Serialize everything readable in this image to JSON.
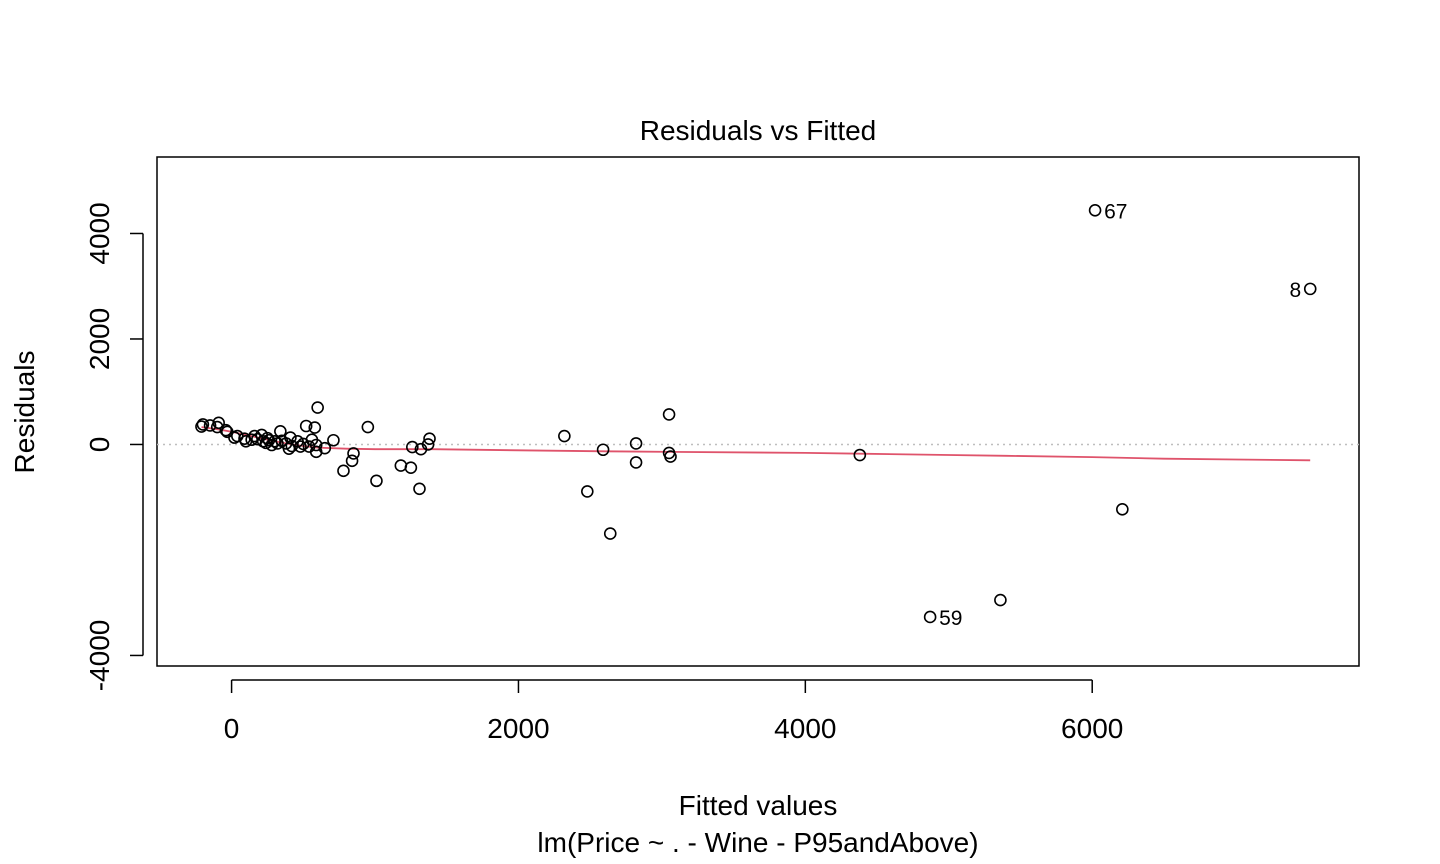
{
  "chart_data": {
    "type": "scatter",
    "title": "Residuals vs Fitted",
    "xlabel": "Fitted values",
    "sublabel": "lm(Price ~ . - Wine - P95andAbove)",
    "ylabel": "Residuals",
    "xlim": [
      -520,
      7860
    ],
    "ylim": [
      -4200,
      5450
    ],
    "x_ticks": [
      0,
      2000,
      4000,
      6000
    ],
    "y_ticks": [
      -4000,
      0,
      2000,
      4000
    ],
    "x_tick_labels": [
      "0",
      "2000",
      "4000",
      "6000"
    ],
    "y_tick_labels": [
      "-4000",
      "0",
      "2000",
      "4000"
    ],
    "grid": false,
    "zero_line": {
      "y": 0,
      "style": "dotted",
      "color": "#bebebe"
    },
    "point_color": "#000000",
    "smoother_color": "#df536b",
    "points": [
      {
        "x": -210,
        "y": 340
      },
      {
        "x": -200,
        "y": 380
      },
      {
        "x": -150,
        "y": 360
      },
      {
        "x": -90,
        "y": 410
      },
      {
        "x": -100,
        "y": 330
      },
      {
        "x": -40,
        "y": 270
      },
      {
        "x": -30,
        "y": 240
      },
      {
        "x": 20,
        "y": 130
      },
      {
        "x": 40,
        "y": 160
      },
      {
        "x": 90,
        "y": 110
      },
      {
        "x": 100,
        "y": 60
      },
      {
        "x": 140,
        "y": 90
      },
      {
        "x": 160,
        "y": 160
      },
      {
        "x": 180,
        "y": 100
      },
      {
        "x": 210,
        "y": 180
      },
      {
        "x": 220,
        "y": 60
      },
      {
        "x": 240,
        "y": 30
      },
      {
        "x": 250,
        "y": 120
      },
      {
        "x": 260,
        "y": 80
      },
      {
        "x": 280,
        "y": -10
      },
      {
        "x": 300,
        "y": 60
      },
      {
        "x": 320,
        "y": 20
      },
      {
        "x": 340,
        "y": 250
      },
      {
        "x": 350,
        "y": 70
      },
      {
        "x": 380,
        "y": 20
      },
      {
        "x": 400,
        "y": -80
      },
      {
        "x": 410,
        "y": 130
      },
      {
        "x": 420,
        "y": -30
      },
      {
        "x": 460,
        "y": 60
      },
      {
        "x": 480,
        "y": -40
      },
      {
        "x": 500,
        "y": 10
      },
      {
        "x": 520,
        "y": 350
      },
      {
        "x": 540,
        "y": -40
      },
      {
        "x": 560,
        "y": 90
      },
      {
        "x": 580,
        "y": 320
      },
      {
        "x": 590,
        "y": -10
      },
      {
        "x": 590,
        "y": -140
      },
      {
        "x": 600,
        "y": 700
      },
      {
        "x": 650,
        "y": -70
      },
      {
        "x": 710,
        "y": 80
      },
      {
        "x": 780,
        "y": -500
      },
      {
        "x": 840,
        "y": -310
      },
      {
        "x": 850,
        "y": -170
      },
      {
        "x": 950,
        "y": 330
      },
      {
        "x": 1010,
        "y": -690
      },
      {
        "x": 1180,
        "y": -400
      },
      {
        "x": 1250,
        "y": -440
      },
      {
        "x": 1260,
        "y": -50
      },
      {
        "x": 1310,
        "y": -840
      },
      {
        "x": 1320,
        "y": -90
      },
      {
        "x": 1370,
        "y": 0
      },
      {
        "x": 1380,
        "y": 110
      },
      {
        "x": 2320,
        "y": 160
      },
      {
        "x": 2480,
        "y": -890
      },
      {
        "x": 2590,
        "y": -100
      },
      {
        "x": 2640,
        "y": -1690
      },
      {
        "x": 2820,
        "y": 20
      },
      {
        "x": 2820,
        "y": -340
      },
      {
        "x": 3050,
        "y": 570
      },
      {
        "x": 3050,
        "y": -160
      },
      {
        "x": 3060,
        "y": -230
      },
      {
        "x": 4380,
        "y": -200
      },
      {
        "x": 4870,
        "y": -3270,
        "label": "59"
      },
      {
        "x": 5360,
        "y": -2950
      },
      {
        "x": 6020,
        "y": 4440,
        "label": "67"
      },
      {
        "x": 6210,
        "y": -1230
      },
      {
        "x": 7520,
        "y": 2950,
        "label": "8"
      }
    ],
    "smoother": [
      {
        "x": -210,
        "y": 330
      },
      {
        "x": -100,
        "y": 290
      },
      {
        "x": 0,
        "y": 240
      },
      {
        "x": 100,
        "y": 180
      },
      {
        "x": 200,
        "y": 120
      },
      {
        "x": 300,
        "y": 60
      },
      {
        "x": 400,
        "y": 10
      },
      {
        "x": 500,
        "y": -30
      },
      {
        "x": 600,
        "y": -60
      },
      {
        "x": 800,
        "y": -80
      },
      {
        "x": 1000,
        "y": -90
      },
      {
        "x": 1400,
        "y": -90
      },
      {
        "x": 2000,
        "y": -110
      },
      {
        "x": 2600,
        "y": -130
      },
      {
        "x": 3060,
        "y": -140
      },
      {
        "x": 4000,
        "y": -160
      },
      {
        "x": 4380,
        "y": -175
      },
      {
        "x": 5000,
        "y": -200
      },
      {
        "x": 5400,
        "y": -215
      },
      {
        "x": 6000,
        "y": -240
      },
      {
        "x": 6500,
        "y": -270
      },
      {
        "x": 7000,
        "y": -285
      },
      {
        "x": 7520,
        "y": -300
      }
    ]
  }
}
